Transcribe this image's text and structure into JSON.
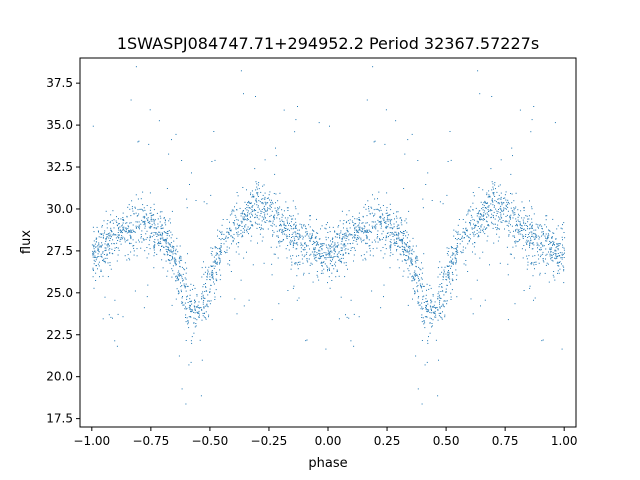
{
  "chart_data": {
    "type": "scatter",
    "title": "1SWASPJ084747.71+294952.2 Period 32367.57227s",
    "xlabel": "phase",
    "ylabel": "flux",
    "xlim": [
      -1.05,
      1.05
    ],
    "ylim": [
      17.0,
      39.0
    ],
    "x_ticks": [
      -1.0,
      -0.75,
      -0.5,
      -0.25,
      0.0,
      0.25,
      0.5,
      0.75,
      1.0
    ],
    "x_tick_labels": [
      "−1.00",
      "−0.75",
      "−0.50",
      "−0.25",
      "0.00",
      "0.25",
      "0.50",
      "0.75",
      "1.00"
    ],
    "y_ticks": [
      17.5,
      20.0,
      22.5,
      25.0,
      27.5,
      30.0,
      32.5,
      35.0,
      37.5
    ],
    "y_tick_labels": [
      "17.5",
      "20.0",
      "22.5",
      "25.0",
      "27.5",
      "30.0",
      "32.5",
      "35.0",
      "37.5"
    ],
    "grid": false,
    "marker_color": "#1f77b4",
    "series": [
      {
        "profile_phase": [
          0.0,
          0.05,
          0.1,
          0.15,
          0.2,
          0.25,
          0.3,
          0.35,
          0.4,
          0.43,
          0.46,
          0.5,
          0.55,
          0.6,
          0.65,
          0.7,
          0.75,
          0.8,
          0.85,
          0.9,
          0.95,
          1.0
        ],
        "profile_flux": [
          27.3,
          27.8,
          28.3,
          28.8,
          29.0,
          28.8,
          28.2,
          27.0,
          24.8,
          23.7,
          24.2,
          26.0,
          27.8,
          28.8,
          29.6,
          30.1,
          29.8,
          29.0,
          28.3,
          27.8,
          27.4,
          27.3
        ],
        "scatter_spread": 0.8,
        "n_points_per_cycle": 1700,
        "repeat_cycles": [
          -1,
          0
        ]
      }
    ]
  }
}
